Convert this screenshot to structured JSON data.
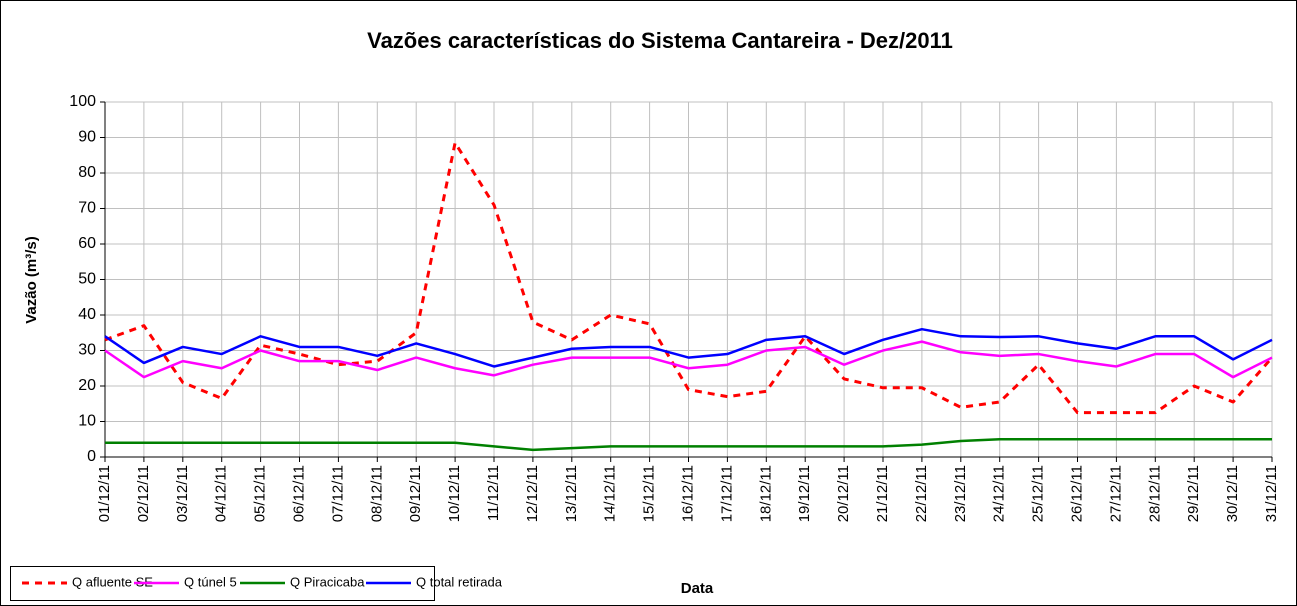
{
  "chart_data": {
    "type": "line",
    "title": "Vazões características do Sistema Cantareira - Dez/2011",
    "x_label": "Data",
    "y_label": "Vazão (m³/s)",
    "categories": [
      "01/12/11",
      "02/12/11",
      "03/12/11",
      "04/12/11",
      "05/12/11",
      "06/12/11",
      "07/12/11",
      "08/12/11",
      "09/12/11",
      "10/12/11",
      "11/12/11",
      "12/12/11",
      "13/12/11",
      "14/12/11",
      "15/12/11",
      "16/12/11",
      "17/12/11",
      "18/12/11",
      "19/12/11",
      "20/12/11",
      "21/12/11",
      "22/12/11",
      "23/12/11",
      "24/12/11",
      "25/12/11",
      "26/12/11",
      "27/12/11",
      "28/12/11",
      "29/12/11",
      "30/12/11",
      "31/12/11"
    ],
    "series": [
      {
        "name": "Q afluente SE",
        "color": "#ff0000",
        "dashed": true,
        "values": [
          33,
          37,
          21,
          16.5,
          31.5,
          29,
          26,
          27,
          35,
          88.5,
          71,
          38,
          33,
          40,
          37.5,
          19,
          17,
          18.5,
          34,
          22,
          19.5,
          19.5,
          14,
          15.5,
          26,
          12.5,
          12.5,
          12.5,
          20,
          15.5,
          28
        ]
      },
      {
        "name": "Q túnel 5",
        "color": "#ff00ff",
        "dashed": false,
        "values": [
          30,
          22.5,
          27,
          25,
          30,
          27,
          27,
          24.5,
          28,
          25,
          23,
          26,
          28,
          28,
          28,
          25,
          26,
          30,
          31,
          26,
          30,
          32.5,
          29.5,
          28.5,
          29,
          27,
          25.5,
          29,
          29,
          22.5,
          28
        ]
      },
      {
        "name": "Q Piracicaba",
        "color": "#008000",
        "dashed": false,
        "values": [
          4,
          4,
          4,
          4,
          4,
          4,
          4,
          4,
          4,
          4,
          3,
          2,
          2.5,
          3,
          3,
          3,
          3,
          3,
          3,
          3,
          3,
          3.5,
          4.5,
          5,
          5,
          5,
          5,
          5,
          5,
          5,
          5
        ]
      },
      {
        "name": "Q total retirada",
        "color": "#0000ff",
        "dashed": false,
        "values": [
          34,
          26.5,
          31,
          29,
          34,
          31,
          31,
          28.5,
          32,
          29,
          25.5,
          28,
          30.5,
          31,
          31,
          28,
          29,
          33,
          34,
          29,
          33,
          36,
          34,
          33.8,
          34,
          32,
          30.5,
          34,
          34,
          27.5,
          33
        ]
      }
    ],
    "ylim": [
      0,
      100
    ],
    "yticks": [
      0,
      10,
      20,
      30,
      40,
      50,
      60,
      70,
      80,
      90,
      100
    ],
    "grid": true,
    "legend": "bottom-left"
  }
}
